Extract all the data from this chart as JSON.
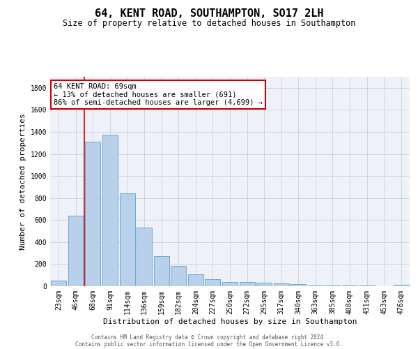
{
  "title": "64, KENT ROAD, SOUTHAMPTON, SO17 2LH",
  "subtitle": "Size of property relative to detached houses in Southampton",
  "xlabel": "Distribution of detached houses by size in Southampton",
  "ylabel": "Number of detached properties",
  "categories": [
    "23sqm",
    "46sqm",
    "68sqm",
    "91sqm",
    "114sqm",
    "136sqm",
    "159sqm",
    "182sqm",
    "204sqm",
    "227sqm",
    "250sqm",
    "272sqm",
    "295sqm",
    "317sqm",
    "340sqm",
    "363sqm",
    "385sqm",
    "408sqm",
    "431sqm",
    "453sqm",
    "476sqm"
  ],
  "values": [
    50,
    640,
    1310,
    1375,
    845,
    530,
    275,
    185,
    105,
    65,
    38,
    35,
    30,
    25,
    18,
    5,
    5,
    5,
    5,
    2,
    15
  ],
  "bar_color": "#b8d0ea",
  "bar_edge_color": "#6aaad4",
  "grid_color": "#c8d0dc",
  "vline_color": "#cc0000",
  "vline_x": 1.5,
  "annotation_line1": "64 KENT ROAD: 69sqm",
  "annotation_line2": "← 13% of detached houses are smaller (691)",
  "annotation_line3": "86% of semi-detached houses are larger (4,699) →",
  "annotation_box_color": "#cc0000",
  "ylim": [
    0,
    1900
  ],
  "yticks": [
    0,
    200,
    400,
    600,
    800,
    1000,
    1200,
    1400,
    1600,
    1800
  ],
  "footer1": "Contains HM Land Registry data © Crown copyright and database right 2024.",
  "footer2": "Contains public sector information licensed under the Open Government Licence v3.0.",
  "bg_color": "#eef2f8",
  "title_fontsize": 11,
  "subtitle_fontsize": 8.5,
  "tick_fontsize": 7,
  "ylabel_fontsize": 8,
  "xlabel_fontsize": 8,
  "annotation_fontsize": 7.5,
  "footer_fontsize": 5.5
}
